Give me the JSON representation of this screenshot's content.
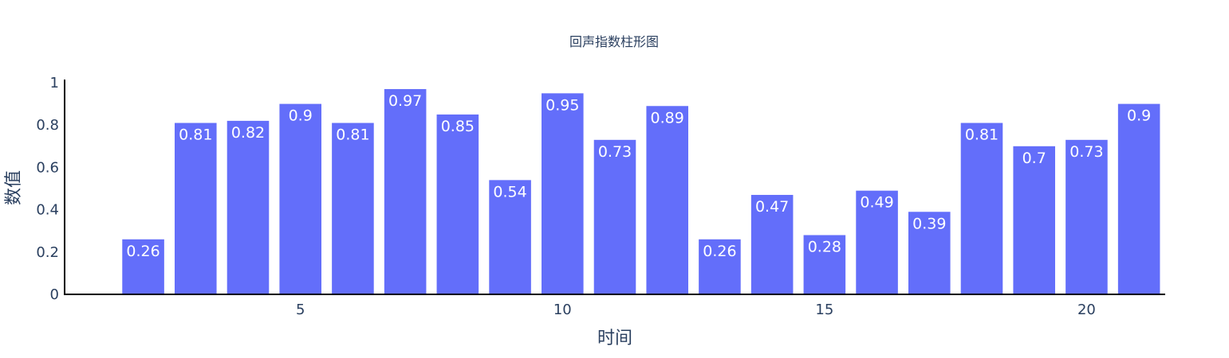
{
  "chart_data": {
    "type": "bar",
    "title": "回声指数柱形图",
    "xlabel": "时间",
    "ylabel": "数值",
    "x": [
      2,
      3,
      4,
      5,
      6,
      7,
      8,
      9,
      10,
      11,
      12,
      13,
      14,
      15,
      16,
      17,
      18,
      19,
      20,
      21
    ],
    "values": [
      0.26,
      0.81,
      0.82,
      0.9,
      0.81,
      0.97,
      0.85,
      0.54,
      0.95,
      0.73,
      0.89,
      0.26,
      0.47,
      0.28,
      0.49,
      0.39,
      0.81,
      0.7,
      0.73,
      0.9
    ],
    "xlim": [
      0.5,
      21.5
    ],
    "ylim": [
      0,
      1
    ],
    "xticks": [
      5,
      10,
      15,
      20
    ],
    "yticks": [
      0,
      0.2,
      0.4,
      0.6,
      0.8,
      1
    ],
    "ytick_labels": [
      "0",
      "0.2",
      "0.4",
      "0.6",
      "0.8",
      "1"
    ],
    "bar_color": "#636efa",
    "label_color": "#ffffff",
    "grid": false,
    "legend": false
  }
}
